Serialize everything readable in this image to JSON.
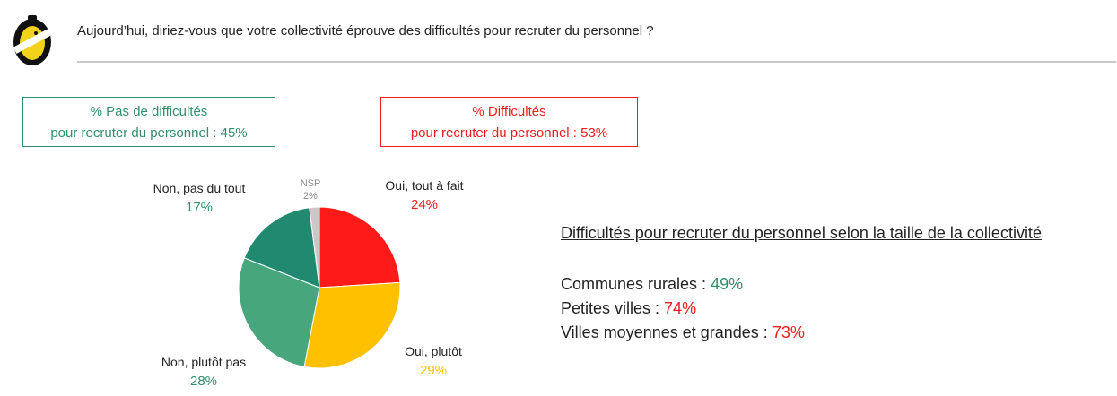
{
  "header": {
    "question": "Aujourd’hui, diriez-vous que votre collectivité éprouve des difficultés pour recruter du personnel ?"
  },
  "summary": {
    "no_difficulty_line1": "%  Pas de difficultés",
    "no_difficulty_line2": "pour recruter du personnel  : 45%",
    "difficulty_line1": "% Difficultés",
    "difficulty_line2": "pour recruter du personnel  : 53%"
  },
  "chart_data": {
    "type": "pie",
    "slices": [
      {
        "label": "Oui, tout à fait",
        "value": 24,
        "value_label": "24%",
        "color": "#ff1a1a",
        "label_color": "#ee1c1c"
      },
      {
        "label": "Oui, plutôt",
        "value": 29,
        "value_label": "29%",
        "color": "#ffc000",
        "label_color": "#ffc000"
      },
      {
        "label": "Non, plutôt pas",
        "value": 28,
        "value_label": "28%",
        "color": "#48a67c",
        "label_color": "#2f8f6a"
      },
      {
        "label": "Non, pas du tout",
        "value": 17,
        "value_label": "17%",
        "color": "#218970",
        "label_color": "#2f8f6a"
      },
      {
        "label": "NSP",
        "value": 2,
        "value_label": "2%",
        "color": "#c8c8c8",
        "label_color": "#888888"
      }
    ]
  },
  "side_panel": {
    "title": "Difficultés pour recruter du personnel selon la taille de la collectivité",
    "rows": [
      {
        "label": "Communes rurales : ",
        "value": "49%",
        "color": "#2f8f6a"
      },
      {
        "label": "Petites villes : ",
        "value": "74%",
        "color": "#ee1c1c"
      },
      {
        "label": "Villes moyennes et grandes : ",
        "value": "73%",
        "color": "#ee1c1c"
      }
    ]
  }
}
